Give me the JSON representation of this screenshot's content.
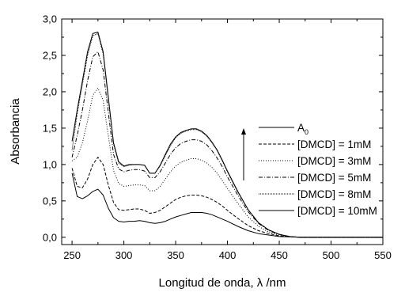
{
  "chart_data": {
    "type": "line",
    "xlabel": "Longitud de onda, λ /nm",
    "ylabel": "Absorbancia",
    "xlim": [
      240,
      550
    ],
    "ylim": [
      -0.1,
      3.0
    ],
    "xticks": [
      250,
      300,
      350,
      400,
      450,
      500,
      550
    ],
    "yticks": [
      0.0,
      0.5,
      1.0,
      1.5,
      2.0,
      2.5,
      3.0
    ],
    "xtick_labels": [
      "250",
      "300",
      "350",
      "400",
      "450",
      "500",
      "550"
    ],
    "ytick_labels": [
      "0,0",
      "0,5",
      "1,0",
      "1,5",
      "2,0",
      "2,5",
      "3,0"
    ],
    "grid": false,
    "legend_position": "right",
    "x": [
      250,
      255,
      260,
      265,
      270,
      275,
      280,
      285,
      290,
      295,
      300,
      305,
      310,
      315,
      320,
      325,
      330,
      335,
      340,
      345,
      350,
      355,
      360,
      365,
      370,
      375,
      380,
      385,
      390,
      395,
      400,
      410,
      420,
      430,
      440,
      450,
      460,
      470,
      480,
      490,
      500,
      525,
      550
    ],
    "series": [
      {
        "name": "A",
        "name_subscript": "0",
        "dash": "solid",
        "values": [
          0.88,
          0.56,
          0.53,
          0.57,
          0.63,
          0.66,
          0.58,
          0.4,
          0.27,
          0.22,
          0.21,
          0.22,
          0.22,
          0.23,
          0.22,
          0.2,
          0.19,
          0.2,
          0.22,
          0.25,
          0.28,
          0.3,
          0.32,
          0.34,
          0.34,
          0.34,
          0.33,
          0.31,
          0.28,
          0.25,
          0.22,
          0.15,
          0.09,
          0.05,
          0.03,
          0.01,
          0.005,
          0,
          0,
          0,
          0,
          0,
          0
        ]
      },
      {
        "name": "[DMCD] = 1mM",
        "dash": "dashed",
        "values": [
          0.95,
          0.7,
          0.68,
          0.8,
          1.0,
          1.1,
          1.0,
          0.72,
          0.48,
          0.38,
          0.37,
          0.38,
          0.39,
          0.39,
          0.37,
          0.33,
          0.34,
          0.37,
          0.42,
          0.47,
          0.52,
          0.55,
          0.57,
          0.58,
          0.58,
          0.57,
          0.55,
          0.52,
          0.48,
          0.43,
          0.37,
          0.26,
          0.16,
          0.09,
          0.05,
          0.02,
          0.01,
          0,
          0,
          0,
          0,
          0,
          0
        ]
      },
      {
        "name": "[DMCD] = 3mM",
        "dash": "dotted",
        "values": [
          1.05,
          1.1,
          1.3,
          1.6,
          1.95,
          2.05,
          1.88,
          1.4,
          0.92,
          0.74,
          0.7,
          0.71,
          0.72,
          0.72,
          0.71,
          0.64,
          0.64,
          0.7,
          0.8,
          0.9,
          0.98,
          1.03,
          1.06,
          1.08,
          1.08,
          1.06,
          1.02,
          0.96,
          0.88,
          0.78,
          0.67,
          0.47,
          0.28,
          0.15,
          0.07,
          0.03,
          0.01,
          0,
          0,
          0,
          0,
          0,
          0
        ]
      },
      {
        "name": "[DMCD] = 5mM",
        "dash": "dashdot",
        "values": [
          1.1,
          1.4,
          1.75,
          2.15,
          2.48,
          2.55,
          2.3,
          1.72,
          1.14,
          0.94,
          0.9,
          0.92,
          0.93,
          0.93,
          0.91,
          0.82,
          0.82,
          0.9,
          1.02,
          1.14,
          1.23,
          1.29,
          1.32,
          1.34,
          1.34,
          1.32,
          1.27,
          1.19,
          1.09,
          0.97,
          0.83,
          0.58,
          0.35,
          0.19,
          0.09,
          0.04,
          0.01,
          0,
          0,
          0,
          0,
          0,
          0
        ]
      },
      {
        "name": "[DMCD] = 8mM",
        "dash": "shortdot",
        "values": [
          1.2,
          1.7,
          2.1,
          2.5,
          2.77,
          2.8,
          2.52,
          1.9,
          1.28,
          1.02,
          0.97,
          0.99,
          1.0,
          1.0,
          0.99,
          0.88,
          0.88,
          0.98,
          1.12,
          1.26,
          1.37,
          1.43,
          1.46,
          1.48,
          1.48,
          1.45,
          1.39,
          1.3,
          1.19,
          1.05,
          0.9,
          0.62,
          0.38,
          0.2,
          0.1,
          0.04,
          0.01,
          0,
          0,
          0,
          0,
          0,
          0
        ]
      },
      {
        "name": "[DMCD] = 10mM",
        "dash": "solid",
        "values": [
          1.32,
          1.75,
          2.15,
          2.55,
          2.8,
          2.82,
          2.55,
          1.93,
          1.3,
          1.04,
          0.98,
          1.0,
          1.0,
          1.0,
          0.99,
          0.88,
          0.88,
          0.99,
          1.14,
          1.28,
          1.38,
          1.44,
          1.47,
          1.49,
          1.49,
          1.46,
          1.4,
          1.31,
          1.2,
          1.06,
          0.91,
          0.63,
          0.38,
          0.2,
          0.1,
          0.04,
          0.01,
          0,
          0,
          0,
          0,
          0,
          0
        ]
      }
    ]
  }
}
